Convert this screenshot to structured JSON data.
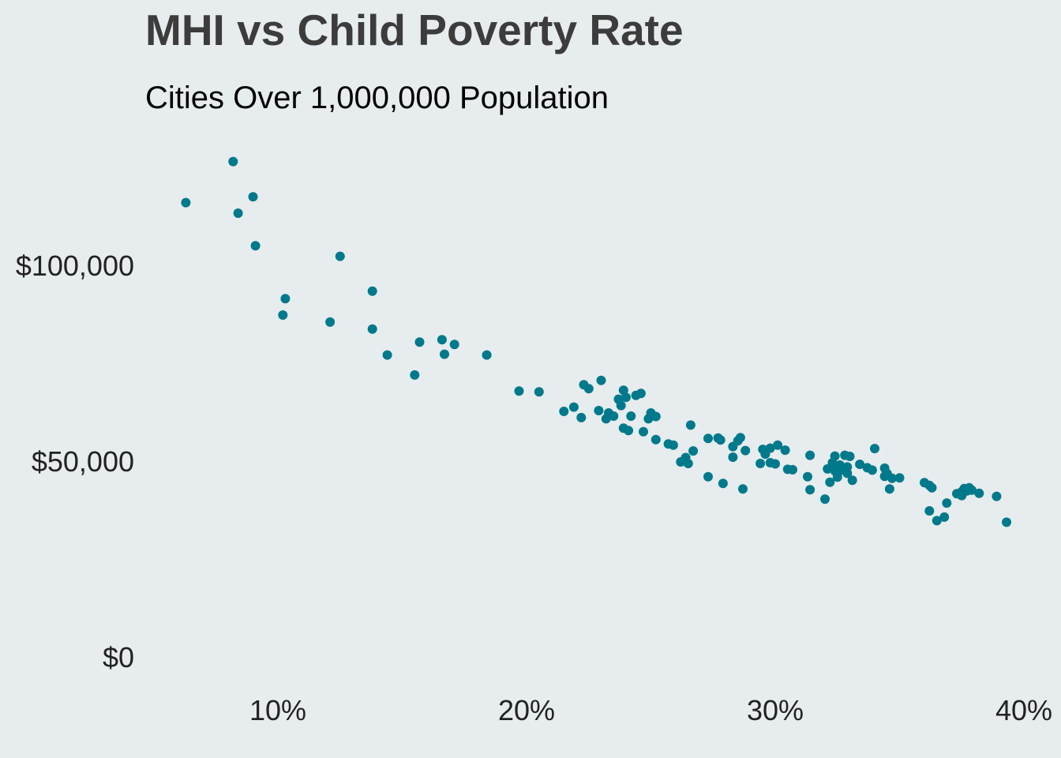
{
  "chart_data": {
    "type": "scatter",
    "title": "MHI vs Child Poverty Rate",
    "subtitle": "Cities Over 1,000,000 Population",
    "xlabel": "",
    "ylabel": "",
    "xlim": [
      0.047,
      0.4
    ],
    "ylim": [
      0,
      130000
    ],
    "x_ticks": [
      0.1,
      0.2,
      0.3,
      0.4
    ],
    "x_tick_labels": [
      "10%",
      "20%",
      "30%",
      "40%"
    ],
    "y_ticks": [
      0,
      50000,
      100000
    ],
    "y_tick_labels": [
      "$0",
      "$50,000",
      "$100,000"
    ],
    "grid": false,
    "legend": "none",
    "point_color": "#007A8A",
    "background_color": "#E7ECEE",
    "points": [
      {
        "x": 0.063,
        "y": 116000
      },
      {
        "x": 0.082,
        "y": 126500
      },
      {
        "x": 0.084,
        "y": 113300
      },
      {
        "x": 0.09,
        "y": 117500
      },
      {
        "x": 0.091,
        "y": 105000
      },
      {
        "x": 0.103,
        "y": 91500
      },
      {
        "x": 0.102,
        "y": 87300
      },
      {
        "x": 0.121,
        "y": 85500
      },
      {
        "x": 0.125,
        "y": 102300
      },
      {
        "x": 0.138,
        "y": 93400
      },
      {
        "x": 0.138,
        "y": 83700
      },
      {
        "x": 0.144,
        "y": 77100
      },
      {
        "x": 0.155,
        "y": 72000
      },
      {
        "x": 0.157,
        "y": 80400
      },
      {
        "x": 0.166,
        "y": 81000
      },
      {
        "x": 0.167,
        "y": 77300
      },
      {
        "x": 0.171,
        "y": 79800
      },
      {
        "x": 0.184,
        "y": 77100
      },
      {
        "x": 0.197,
        "y": 67900
      },
      {
        "x": 0.205,
        "y": 67700
      },
      {
        "x": 0.215,
        "y": 62700
      },
      {
        "x": 0.219,
        "y": 63800
      },
      {
        "x": 0.222,
        "y": 61100
      },
      {
        "x": 0.223,
        "y": 69500
      },
      {
        "x": 0.225,
        "y": 68500
      },
      {
        "x": 0.229,
        "y": 62900
      },
      {
        "x": 0.23,
        "y": 70600
      },
      {
        "x": 0.232,
        "y": 60800
      },
      {
        "x": 0.233,
        "y": 62300
      },
      {
        "x": 0.235,
        "y": 61500
      },
      {
        "x": 0.237,
        "y": 65800
      },
      {
        "x": 0.238,
        "y": 64200
      },
      {
        "x": 0.239,
        "y": 68100
      },
      {
        "x": 0.24,
        "y": 66300
      },
      {
        "x": 0.239,
        "y": 58400
      },
      {
        "x": 0.241,
        "y": 57800
      },
      {
        "x": 0.242,
        "y": 61500
      },
      {
        "x": 0.244,
        "y": 66800
      },
      {
        "x": 0.246,
        "y": 67300
      },
      {
        "x": 0.247,
        "y": 57500
      },
      {
        "x": 0.249,
        "y": 60800
      },
      {
        "x": 0.25,
        "y": 62300
      },
      {
        "x": 0.252,
        "y": 61400
      },
      {
        "x": 0.252,
        "y": 55500
      },
      {
        "x": 0.257,
        "y": 54400
      },
      {
        "x": 0.259,
        "y": 54100
      },
      {
        "x": 0.262,
        "y": 49800
      },
      {
        "x": 0.264,
        "y": 50900
      },
      {
        "x": 0.265,
        "y": 49400
      },
      {
        "x": 0.266,
        "y": 59200
      },
      {
        "x": 0.267,
        "y": 52600
      },
      {
        "x": 0.273,
        "y": 55800
      },
      {
        "x": 0.273,
        "y": 46000
      },
      {
        "x": 0.277,
        "y": 55900
      },
      {
        "x": 0.278,
        "y": 55400
      },
      {
        "x": 0.279,
        "y": 44300
      },
      {
        "x": 0.283,
        "y": 51000
      },
      {
        "x": 0.283,
        "y": 53700
      },
      {
        "x": 0.285,
        "y": 55200
      },
      {
        "x": 0.286,
        "y": 56000
      },
      {
        "x": 0.287,
        "y": 42900
      },
      {
        "x": 0.288,
        "y": 52700
      },
      {
        "x": 0.294,
        "y": 49400
      },
      {
        "x": 0.295,
        "y": 53000
      },
      {
        "x": 0.296,
        "y": 51800
      },
      {
        "x": 0.298,
        "y": 53300
      },
      {
        "x": 0.298,
        "y": 49600
      },
      {
        "x": 0.3,
        "y": 49300
      },
      {
        "x": 0.301,
        "y": 54100
      },
      {
        "x": 0.304,
        "y": 52800
      },
      {
        "x": 0.305,
        "y": 47900
      },
      {
        "x": 0.307,
        "y": 47800
      },
      {
        "x": 0.313,
        "y": 46000
      },
      {
        "x": 0.314,
        "y": 51500
      },
      {
        "x": 0.314,
        "y": 42700
      },
      {
        "x": 0.32,
        "y": 40300
      },
      {
        "x": 0.321,
        "y": 48000
      },
      {
        "x": 0.322,
        "y": 44600
      },
      {
        "x": 0.323,
        "y": 49600
      },
      {
        "x": 0.324,
        "y": 51300
      },
      {
        "x": 0.324,
        "y": 47500
      },
      {
        "x": 0.325,
        "y": 45900
      },
      {
        "x": 0.326,
        "y": 49000
      },
      {
        "x": 0.327,
        "y": 47700
      },
      {
        "x": 0.328,
        "y": 51500
      },
      {
        "x": 0.329,
        "y": 48500
      },
      {
        "x": 0.329,
        "y": 46900
      },
      {
        "x": 0.33,
        "y": 51200
      },
      {
        "x": 0.331,
        "y": 45100
      },
      {
        "x": 0.334,
        "y": 49200
      },
      {
        "x": 0.337,
        "y": 48300
      },
      {
        "x": 0.339,
        "y": 47700
      },
      {
        "x": 0.34,
        "y": 53200
      },
      {
        "x": 0.344,
        "y": 48200
      },
      {
        "x": 0.344,
        "y": 46100
      },
      {
        "x": 0.345,
        "y": 46800
      },
      {
        "x": 0.346,
        "y": 42900
      },
      {
        "x": 0.347,
        "y": 45600
      },
      {
        "x": 0.35,
        "y": 45700
      },
      {
        "x": 0.36,
        "y": 44500
      },
      {
        "x": 0.362,
        "y": 43800
      },
      {
        "x": 0.362,
        "y": 37300
      },
      {
        "x": 0.363,
        "y": 43200
      },
      {
        "x": 0.365,
        "y": 34800
      },
      {
        "x": 0.368,
        "y": 35700
      },
      {
        "x": 0.369,
        "y": 39300
      },
      {
        "x": 0.373,
        "y": 41700
      },
      {
        "x": 0.375,
        "y": 42200
      },
      {
        "x": 0.375,
        "y": 41200
      },
      {
        "x": 0.376,
        "y": 43000
      },
      {
        "x": 0.377,
        "y": 42400
      },
      {
        "x": 0.378,
        "y": 43200
      },
      {
        "x": 0.379,
        "y": 42600
      },
      {
        "x": 0.382,
        "y": 41800
      },
      {
        "x": 0.389,
        "y": 41000
      },
      {
        "x": 0.393,
        "y": 34400
      }
    ]
  }
}
